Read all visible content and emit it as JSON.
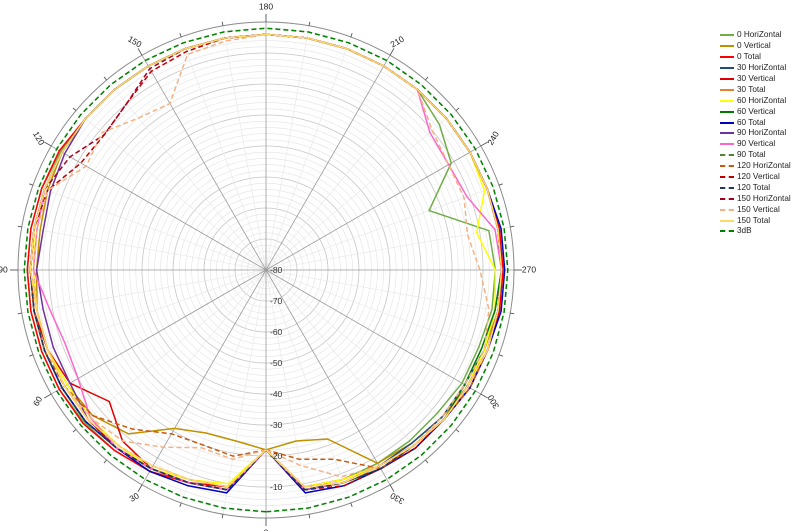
{
  "chart_data": {
    "type": "line",
    "projection": "polar",
    "angle_direction": "counterclockwise from bottom",
    "grid": true,
    "legend_position": "right",
    "radial_range": [
      -80,
      0
    ],
    "radial_ticks": [
      "-80",
      "-70",
      "-60",
      "-50",
      "-40",
      "-30",
      "-20",
      "-10"
    ],
    "angle_ticks": [
      "0",
      "30",
      "60",
      "90",
      "120",
      "150",
      "180",
      "210",
      "240",
      "270",
      "300",
      "330"
    ],
    "angle_tick_values": [
      0,
      30,
      60,
      90,
      120,
      150,
      180,
      210,
      240,
      270,
      300,
      330
    ],
    "x": [
      0,
      10,
      20,
      30,
      40,
      50,
      60,
      70,
      80,
      90,
      100,
      110,
      120,
      130,
      140,
      150,
      160,
      170,
      180,
      190,
      200,
      210,
      220,
      230,
      240,
      250,
      260,
      270,
      280,
      290,
      300,
      310,
      320,
      330,
      340,
      350,
      360
    ],
    "series": [
      {
        "name": "0 HoriZontal",
        "color": "#70ad47",
        "dash": false,
        "values": [
          -22,
          -9,
          -7,
          -5,
          -4,
          -3.5,
          -3,
          -3,
          -3,
          -3,
          -3,
          -3,
          -3.5,
          -4,
          -4,
          -4,
          -4,
          -4,
          -4,
          -4,
          -4,
          -4,
          -4,
          -7,
          -11,
          -24,
          -7,
          -6,
          -6,
          -7,
          -7,
          -8,
          -8,
          -8,
          -8,
          -9,
          -22
        ]
      },
      {
        "name": "0 Vertical",
        "color": "#bf9000",
        "dash": false,
        "values": [
          -22,
          -24,
          -24,
          -21,
          -11,
          -7,
          -6,
          -5,
          -5,
          -6,
          -6,
          -5,
          -4,
          -4,
          -4,
          -4,
          -4,
          -4,
          -4,
          -4,
          -4,
          -4,
          -4,
          -4,
          -4,
          -4,
          -4,
          -4,
          -4,
          -5,
          -5,
          -6,
          -7,
          -8,
          -22,
          -24,
          -22
        ]
      },
      {
        "name": "0 Total",
        "color": "#ff0000",
        "dash": false,
        "values": [
          -22,
          -9,
          -7,
          -5,
          -4,
          -3,
          -3,
          -3,
          -3,
          -3,
          -3,
          -3,
          -3,
          -4,
          -4,
          -4,
          -4,
          -4,
          -4,
          -4,
          -4,
          -4,
          -4,
          -4,
          -4,
          -4,
          -3.5,
          -3.5,
          -3.5,
          -4,
          -4,
          -5,
          -6,
          -7,
          -8,
          -9,
          -22
        ]
      },
      {
        "name": "30 HoriZontal",
        "color": "#1f4e79",
        "dash": false,
        "values": [
          -22,
          -8,
          -7,
          -6,
          -5,
          -4,
          -4,
          -4,
          -4,
          -4,
          -4,
          -4,
          -4,
          -4,
          -4,
          -4,
          -4,
          -4,
          -4,
          -4,
          -4,
          -4,
          -4,
          -4,
          -4,
          -4,
          -4,
          -4,
          -5,
          -5,
          -6,
          -6,
          -7,
          -7,
          -7,
          -8,
          -22
        ]
      },
      {
        "name": "30 Vertical",
        "color": "#e00000",
        "dash": false,
        "values": [
          -22,
          -8,
          -7,
          -6,
          -8,
          -14,
          -7,
          -5,
          -4,
          -4,
          -4,
          -4,
          -4,
          -4,
          -4,
          -4,
          -4,
          -4,
          -4,
          -4,
          -4,
          -4,
          -4,
          -4,
          -4,
          -4,
          -4,
          -4,
          -4,
          -4,
          -5,
          -5,
          -6,
          -7,
          -7,
          -8,
          -22
        ]
      },
      {
        "name": "30 Total",
        "color": "#ed7d31",
        "dash": false,
        "values": [
          -22,
          -8,
          -7,
          -6,
          -5,
          -4,
          -4,
          -4,
          -4,
          -4,
          -4,
          -4,
          -4,
          -4,
          -4,
          -4,
          -4,
          -4,
          -4,
          -4,
          -4,
          -4,
          -4,
          -4,
          -4,
          -4,
          -4,
          -4,
          -4,
          -4,
          -5,
          -5,
          -6,
          -6,
          -7,
          -8,
          -22
        ]
      },
      {
        "name": "60 HoriZontal",
        "color": "#ffff00",
        "dash": false,
        "values": [
          -22,
          -10,
          -8,
          -6,
          -6,
          -6,
          -6,
          -5,
          -5,
          -5,
          -4,
          -4,
          -4,
          -4,
          -4,
          -4,
          -4,
          -4,
          -4,
          -4,
          -4,
          -4,
          -4,
          -4,
          -4,
          -5,
          -11,
          -6,
          -5,
          -5,
          -5,
          -5,
          -6,
          -7,
          -8,
          -9,
          -22
        ]
      },
      {
        "name": "60 Vertical",
        "color": "#007a00",
        "dash": false,
        "values": [
          -22,
          -8,
          -7,
          -6,
          -5,
          -4,
          -4,
          -4,
          -4,
          -4,
          -4,
          -4,
          -4,
          -4,
          -4,
          -4,
          -4,
          -4,
          -4,
          -4,
          -4,
          -4,
          -4,
          -4,
          -4,
          -4,
          -4,
          -4,
          -5,
          -6,
          -6,
          -5,
          -5,
          -6,
          -7,
          -8,
          -22
        ]
      },
      {
        "name": "60 Total",
        "color": "#0000c0",
        "dash": false,
        "values": [
          -22,
          -7,
          -6,
          -5,
          -5,
          -4,
          -4,
          -4,
          -4,
          -4,
          -4,
          -4,
          -4,
          -4,
          -4,
          -4,
          -4,
          -4,
          -4,
          -4,
          -4,
          -4,
          -4,
          -4,
          -4,
          -4,
          -3,
          -3,
          -3,
          -4,
          -4,
          -5,
          -5,
          -6,
          -6,
          -7,
          -22
        ]
      },
      {
        "name": "90 HoriZontal",
        "color": "#7030a0",
        "dash": false,
        "values": [
          -22,
          -8,
          -7,
          -6,
          -5,
          -5,
          -7,
          -7,
          -7,
          -6,
          -7,
          -6,
          -5,
          -4,
          -4,
          -4,
          -4,
          -4,
          -4,
          -4,
          -4,
          -4,
          -4,
          -4,
          -4,
          -4,
          -4,
          -4,
          -4,
          -4,
          -5,
          -5,
          -6,
          -7,
          -7,
          -8,
          -22
        ]
      },
      {
        "name": "90 Vertical",
        "color": "#ff66cc",
        "dash": false,
        "values": [
          -22,
          -8,
          -7,
          -6,
          -5,
          -6,
          -10,
          -11,
          -9,
          -5,
          -5,
          -4,
          -4,
          -4,
          -4,
          -4,
          -4,
          -4,
          -4,
          -4,
          -4,
          -4,
          -4,
          -11,
          -12,
          -11,
          -5,
          -4,
          -4,
          -4,
          -5,
          -5,
          -6,
          -7,
          -7,
          -8,
          -22
        ]
      },
      {
        "name": "90 Total",
        "color": "#548235",
        "dash": true,
        "values": [
          -22,
          -8,
          -7,
          -6,
          -5,
          -4,
          -4,
          -4,
          -4,
          -4,
          -4,
          -4,
          -4,
          -4,
          -4,
          -4,
          -4,
          -4,
          -4,
          -4,
          -4,
          -4,
          -4,
          -4,
          -4,
          -4,
          -4,
          -4,
          -4,
          -4,
          -5,
          -5,
          -6,
          -6,
          -7,
          -8,
          -22
        ]
      },
      {
        "name": "120 HoriZontal",
        "color": "#c55a11",
        "dash": true,
        "values": [
          -22,
          -19,
          -20,
          -19,
          -13,
          -7,
          -5,
          -4,
          -4,
          -4,
          -4,
          -4,
          -4,
          -4,
          -4,
          -4,
          -4,
          -4,
          -4,
          -4,
          -4,
          -4,
          -4,
          -4,
          -4,
          -4,
          -4,
          -4,
          -4,
          -4,
          -4,
          -5,
          -6,
          -6,
          -15,
          -18,
          -22
        ]
      },
      {
        "name": "120 Vertical",
        "color": "#c00000",
        "dash": true,
        "values": [
          -22,
          -8,
          -7,
          -6,
          -5,
          -5,
          -5,
          -5,
          -5,
          -4,
          -4,
          -5,
          -11,
          -12,
          -10,
          -6,
          -5,
          -4,
          -4,
          -4,
          -4,
          -4,
          -4,
          -4,
          -4,
          -4,
          -4,
          -4,
          -4,
          -4,
          -5,
          -5,
          -5,
          -6,
          -6,
          -8,
          -22
        ]
      },
      {
        "name": "120 Total",
        "color": "#203864",
        "dash": true,
        "values": [
          -22,
          -8,
          -7,
          -6,
          -5,
          -4,
          -4,
          -4,
          -4,
          -4,
          -4,
          -4,
          -4,
          -4,
          -4,
          -4,
          -4,
          -4,
          -4,
          -4,
          -4,
          -4,
          -4,
          -4,
          -4,
          -4,
          -4,
          -4,
          -4,
          -4,
          -5,
          -5,
          -6,
          -6,
          -7,
          -8,
          -22
        ]
      },
      {
        "name": "150 HoriZontal",
        "color": "#a50021",
        "dash": true,
        "values": [
          -22,
          -9,
          -8,
          -7,
          -6,
          -5,
          -5,
          -5,
          -5,
          -4,
          -4,
          -4,
          -7,
          -12,
          -10,
          -5,
          -4,
          -4,
          -4,
          -4,
          -4,
          -4,
          -4,
          -4,
          -4,
          -4,
          -4,
          -4,
          -4,
          -4,
          -5,
          -5,
          -6,
          -7,
          -7,
          -9,
          -22
        ]
      },
      {
        "name": "150 Vertical",
        "color": "#f4b183",
        "dash": true,
        "values": [
          -22,
          -18,
          -19,
          -14,
          -8,
          -6,
          -5,
          -5,
          -5,
          -5,
          -5,
          -5,
          -13,
          -11,
          -16,
          -18,
          -6,
          -5,
          -4,
          -4,
          -4,
          -4,
          -4,
          -10,
          -12,
          -12,
          -14,
          -11,
          -7,
          -5,
          -6,
          -6,
          -6,
          -7,
          -9,
          -16,
          -22
        ]
      },
      {
        "name": "150 Total",
        "color": "#ffd966",
        "dash": false,
        "values": [
          -22,
          -9,
          -8,
          -7,
          -6,
          -5,
          -5,
          -5,
          -5,
          -4,
          -4,
          -4,
          -4,
          -4,
          -4,
          -4,
          -4,
          -4,
          -4,
          -4,
          -4,
          -4,
          -4,
          -4,
          -4,
          -4,
          -4,
          -4,
          -4,
          -4,
          -5,
          -5,
          -6,
          -7,
          -7,
          -9,
          -22
        ]
      },
      {
        "name": "3dB",
        "color": "#008000",
        "dash": true,
        "values": [
          -2,
          -2,
          -2,
          -2,
          -2,
          -2,
          -2,
          -2,
          -2,
          -2,
          -2,
          -2,
          -2,
          -2,
          -2,
          -2,
          -2,
          -2,
          -2,
          -2,
          -2,
          -2,
          -2,
          -2,
          -2,
          -2,
          -2,
          -2,
          -2,
          -2,
          -2,
          -2,
          -2,
          -2,
          -2,
          -2,
          -2
        ]
      }
    ]
  }
}
